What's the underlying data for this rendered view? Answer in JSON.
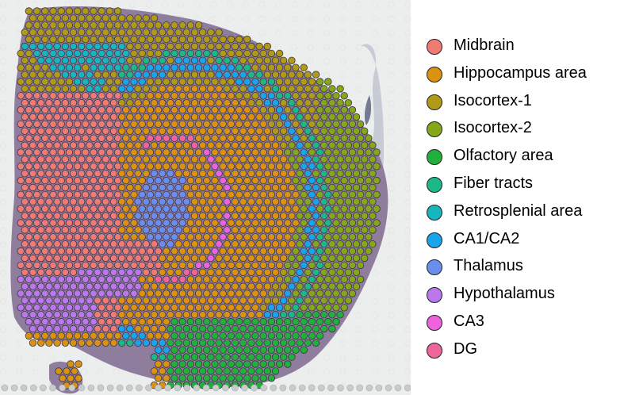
{
  "legend": {
    "items": [
      {
        "label": "Midbrain",
        "color": "#f07a74"
      },
      {
        "label": "Hippocampus area",
        "color": "#d99310"
      },
      {
        "label": "Isocortex-1",
        "color": "#b09b18"
      },
      {
        "label": "Isocortex-2",
        "color": "#85a71a"
      },
      {
        "label": "Olfactory area",
        "color": "#22b03c"
      },
      {
        "label": "Fiber tracts",
        "color": "#1bb888"
      },
      {
        "label": "Retrosplenial area",
        "color": "#16b5bf"
      },
      {
        "label": "CA1/CA2",
        "color": "#1aa4ec"
      },
      {
        "label": "Thalamus",
        "color": "#6a8eee"
      },
      {
        "label": "Hypothalamus",
        "color": "#bb78ec"
      },
      {
        "label": "CA3",
        "color": "#ec63dd"
      },
      {
        "label": "DG",
        "color": "#f0649c"
      }
    ]
  },
  "colors": {
    "background": "#ffffff",
    "slide_background": "#eceeed",
    "tissue_background": "#8f7d9e",
    "spot_outline": "#3a3040"
  }
}
